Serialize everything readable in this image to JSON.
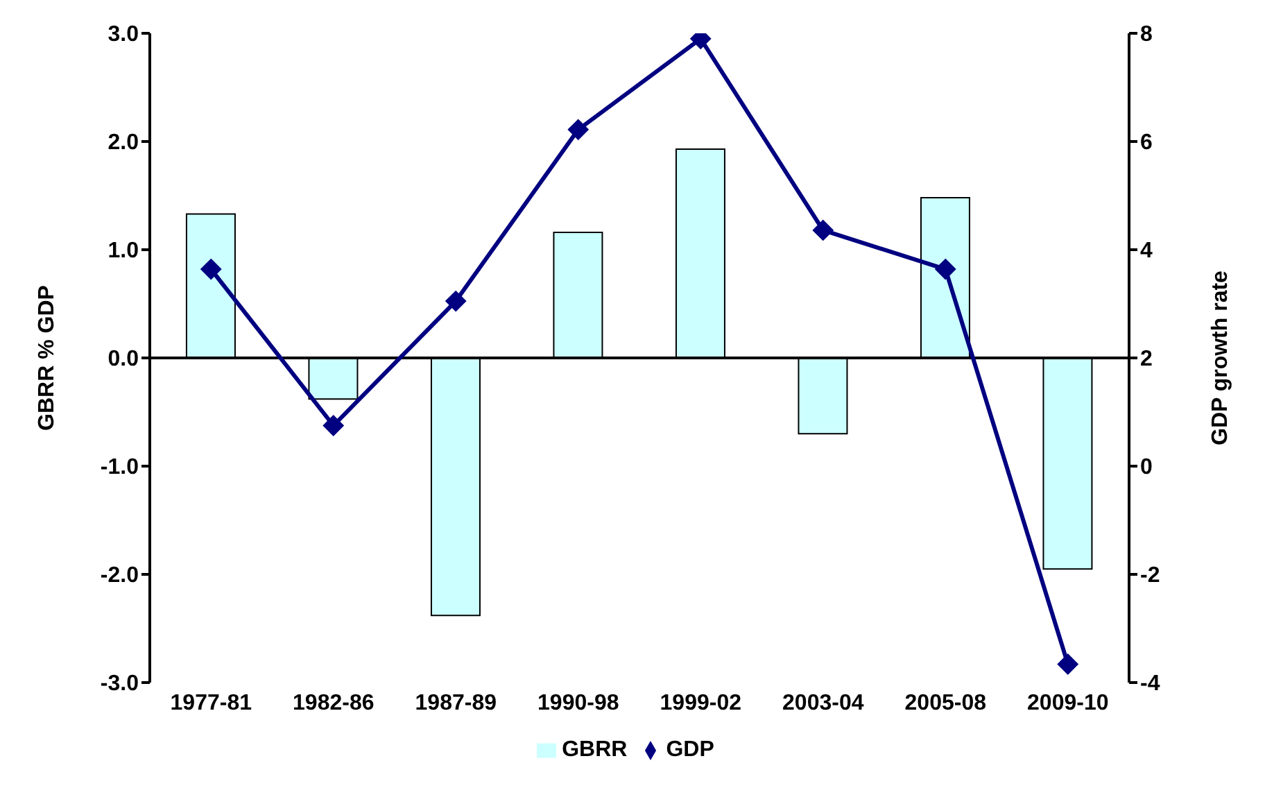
{
  "chart_data": {
    "type": "bar",
    "categories": [
      "1977-81",
      "1982-86",
      "1987-89",
      "1990-98",
      "1999-02",
      "2003-04",
      "2005-08",
      "2009-10"
    ],
    "series": [
      {
        "name": "GBRR",
        "color": "#ccffff",
        "values": [
          1.33,
          -0.38,
          -2.38,
          1.16,
          1.93,
          -0.7,
          1.48,
          -1.95
        ]
      },
      {
        "name": "GDP",
        "type": "line",
        "axis": "y2",
        "color": "#000080",
        "values": [
          3.64,
          0.75,
          3.05,
          6.22,
          7.9,
          4.36,
          3.64,
          -3.66
        ]
      }
    ],
    "ylabel": "GBRR % GDP",
    "y2label": "GDP growth rate",
    "ylim": [
      -3,
      3
    ],
    "yticks": [
      {
        "value": -3,
        "label": "-3.0"
      },
      {
        "value": -2,
        "label": "-2.0"
      },
      {
        "value": -1,
        "label": "-1.0"
      },
      {
        "value": 0,
        "label": "0.0"
      },
      {
        "value": 1,
        "label": "1.0"
      },
      {
        "value": 2,
        "label": "2.0"
      },
      {
        "value": 3,
        "label": "3.0"
      }
    ],
    "y2lim": [
      -4,
      8
    ],
    "y2ticks": [
      -4,
      -2,
      0,
      2,
      4,
      6,
      8
    ],
    "legend": "bottom",
    "marker": "diamond",
    "line_style": "solid"
  }
}
